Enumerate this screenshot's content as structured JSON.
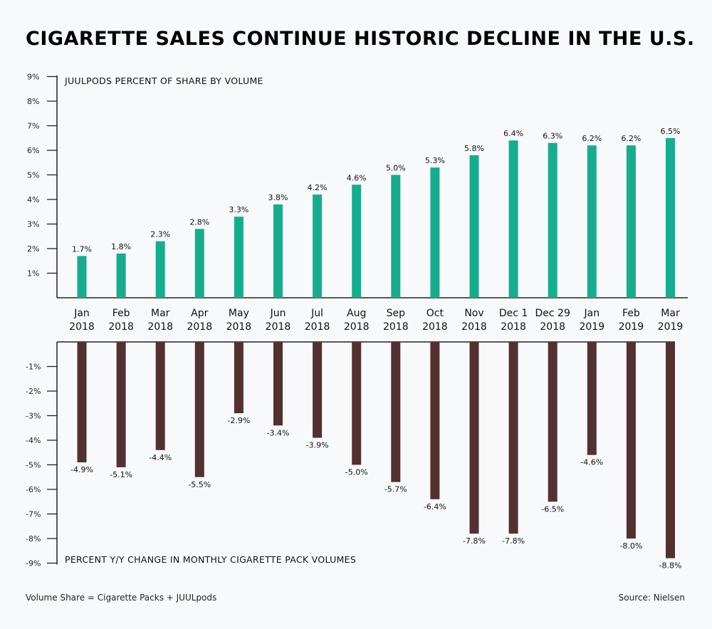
{
  "title": "CIGARETTE SALES CONTINUE HISTORIC DECLINE IN THE U.S.",
  "footer": {
    "note": "Volume Share = Cigarette Packs + JUULpods",
    "source": "Source: Nielsen"
  },
  "colors": {
    "juul": "#16ad8f",
    "cigarette": "#533130",
    "background": "#f8f9fb"
  },
  "chart_data": [
    {
      "type": "bar",
      "title": "JUULPODS PERCENT OF SHARE BY VOLUME",
      "categories": [
        "Jan 2018",
        "Feb 2018",
        "Mar 2018",
        "Apr 2018",
        "May 2018",
        "Jun 2018",
        "Jul 2018",
        "Aug 2018",
        "Sep 2018",
        "Oct 2018",
        "Nov 2018",
        "Dec 1 2018",
        "Dec 29 2018",
        "Jan 2019",
        "Feb 2019",
        "Mar 2019"
      ],
      "category_lines": [
        [
          "Jan",
          "2018"
        ],
        [
          "Feb",
          "2018"
        ],
        [
          "Mar",
          "2018"
        ],
        [
          "Apr",
          "2018"
        ],
        [
          "May",
          "2018"
        ],
        [
          "Jun",
          "2018"
        ],
        [
          "Jul",
          "2018"
        ],
        [
          "Aug",
          "2018"
        ],
        [
          "Sep",
          "2018"
        ],
        [
          "Oct",
          "2018"
        ],
        [
          "Nov",
          "2018"
        ],
        [
          "Dec 1",
          "2018"
        ],
        [
          "Dec 29",
          "2018"
        ],
        [
          "Jan",
          "2019"
        ],
        [
          "Feb",
          "2019"
        ],
        [
          "Mar",
          "2019"
        ]
      ],
      "values": [
        1.7,
        1.8,
        2.3,
        2.8,
        3.3,
        3.8,
        4.2,
        4.6,
        5.0,
        5.3,
        5.8,
        6.4,
        6.3,
        6.2,
        6.2,
        6.5
      ],
      "data_labels": [
        "1.7%",
        "1.8%",
        "2.3%",
        "2.8%",
        "3.3%",
        "3.8%",
        "4.2%",
        "4.6%",
        "5.0%",
        "5.3%",
        "5.8%",
        "6.4%",
        "6.3%",
        "6.2%",
        "6.2%",
        "6.5%"
      ],
      "ylim": [
        0,
        9
      ],
      "yticks": [
        "1%",
        "2%",
        "3%",
        "4%",
        "5%",
        "6%",
        "7%",
        "8%",
        "9%"
      ],
      "grid": false
    },
    {
      "type": "bar",
      "title": "PERCENT Y/Y CHANGE IN MONTHLY CIGARETTE PACK VOLUMES",
      "categories": [
        "Jan 2018",
        "Feb 2018",
        "Mar 2018",
        "Apr 2018",
        "May 2018",
        "Jun 2018",
        "Jul 2018",
        "Aug 2018",
        "Sep 2018",
        "Oct 2018",
        "Nov 2018",
        "Dec 1 2018",
        "Dec 29 2018",
        "Jan 2019",
        "Feb 2019",
        "Mar 2019"
      ],
      "values": [
        -4.9,
        -5.1,
        -4.4,
        -5.5,
        -2.9,
        -3.4,
        -3.9,
        -5.0,
        -5.7,
        -6.4,
        -7.8,
        -7.8,
        -6.5,
        -4.6,
        -8.0,
        -8.8
      ],
      "data_labels": [
        "-4.9%",
        "-5.1%",
        "-4.4%",
        "-5.5%",
        "-2.9%",
        "-3.4%",
        "-3.9%",
        "-5.0%",
        "-5.7%",
        "-6.4%",
        "-7.8%",
        "-7.8%",
        "-6.5%",
        "-4.6%",
        "-8.0%",
        "-8.8%"
      ],
      "ylim": [
        -9,
        0
      ],
      "yticks": [
        "-1%",
        "-2%",
        "-3%",
        "-4%",
        "-5%",
        "-6%",
        "-7%",
        "-8%",
        "-9%"
      ],
      "grid": false
    }
  ]
}
